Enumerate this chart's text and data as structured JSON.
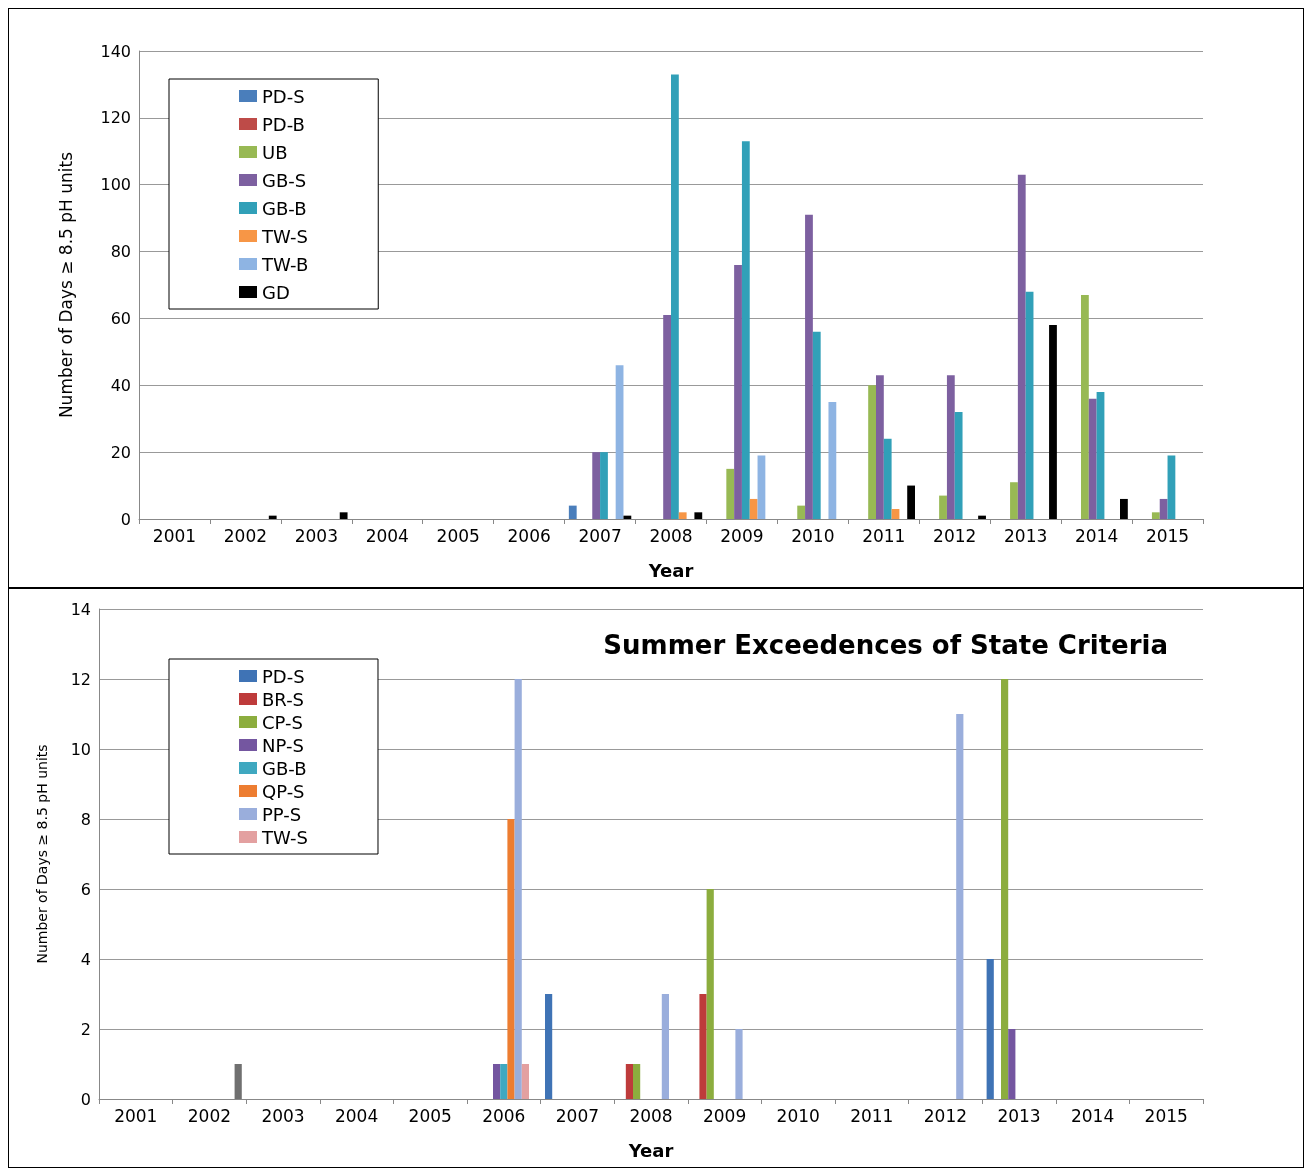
{
  "chart_data": [
    {
      "type": "bar",
      "xlabel": "Year",
      "ylabel": "Number of Days ≥ 8.5 pH units",
      "categories": [
        "2001",
        "2002",
        "2003",
        "2004",
        "2005",
        "2006",
        "2007",
        "2008",
        "2009",
        "2010",
        "2011",
        "2012",
        "2013",
        "2014",
        "2015"
      ],
      "ylim": [
        0,
        140
      ],
      "yticks": [
        0,
        20,
        40,
        60,
        80,
        100,
        120,
        140
      ],
      "grid": "y",
      "legend": "top left",
      "series": [
        {
          "name": "PD-S",
          "color": "#4a7ebb",
          "values": [
            0,
            0,
            0,
            0,
            0,
            0,
            4,
            0,
            0,
            0,
            0,
            0,
            0,
            0,
            0
          ]
        },
        {
          "name": "PD-B",
          "color": "#be4b48",
          "values": [
            0,
            0,
            0,
            0,
            0,
            0,
            0,
            0,
            0,
            0,
            0,
            0,
            0,
            0,
            0
          ]
        },
        {
          "name": "UB",
          "color": "#98b954",
          "values": [
            0,
            0,
            0,
            0,
            0,
            0,
            0,
            0,
            15,
            4,
            40,
            7,
            11,
            67,
            2
          ]
        },
        {
          "name": "GB-S",
          "color": "#7d60a0",
          "values": [
            0,
            0,
            0,
            0,
            0,
            0,
            20,
            61,
            76,
            91,
            43,
            43,
            103,
            36,
            6
          ]
        },
        {
          "name": "GB-B",
          "color": "#31a0b8",
          "values": [
            0,
            0,
            0,
            0,
            0,
            0,
            20,
            133,
            113,
            56,
            24,
            32,
            68,
            38,
            19
          ]
        },
        {
          "name": "TW-S",
          "color": "#f79646",
          "values": [
            0,
            0,
            0,
            0,
            0,
            0,
            0,
            2,
            6,
            0,
            3,
            0,
            0,
            0,
            0
          ]
        },
        {
          "name": "TW-B",
          "color": "#8eb4e3",
          "values": [
            0,
            0,
            0,
            0,
            0,
            0,
            46,
            0,
            19,
            35,
            0,
            0,
            0,
            0,
            0
          ]
        },
        {
          "name": "GD",
          "color": "#000000",
          "values": [
            0,
            1,
            2,
            0,
            0,
            0,
            1,
            2,
            0,
            0,
            10,
            1,
            58,
            6,
            0
          ]
        }
      ]
    },
    {
      "type": "bar",
      "title": "Summer Exceedences of State Criteria",
      "xlabel": "Year",
      "ylabel": "Number of Days ≥ 8.5 pH units",
      "categories": [
        "2001",
        "2002",
        "2003",
        "2004",
        "2005",
        "2006",
        "2007",
        "2008",
        "2009",
        "2010",
        "2011",
        "2012",
        "2013",
        "2014",
        "2015"
      ],
      "ylim": [
        0,
        14
      ],
      "yticks": [
        0,
        2,
        4,
        6,
        8,
        10,
        12,
        14
      ],
      "grid": "y",
      "legend": "top left",
      "series": [
        {
          "name": "PD-S",
          "color": "#3f73b5",
          "values": [
            0,
            0,
            0,
            0,
            0,
            0,
            3,
            0,
            0,
            0,
            0,
            0,
            4,
            0,
            0
          ]
        },
        {
          "name": "BR-S",
          "color": "#be3b3b",
          "values": [
            0,
            0,
            0,
            0,
            0,
            0,
            0,
            1,
            3,
            0,
            0,
            0,
            0,
            0,
            0
          ]
        },
        {
          "name": "CP-S",
          "color": "#8cad3e",
          "values": [
            0,
            0,
            0,
            0,
            0,
            0,
            0,
            1,
            6,
            0,
            0,
            0,
            12,
            0,
            0
          ]
        },
        {
          "name": "NP-S",
          "color": "#7456a0",
          "values": [
            0,
            0,
            0,
            0,
            0,
            1,
            0,
            0,
            0,
            0,
            0,
            0,
            2,
            0,
            0
          ]
        },
        {
          "name": "GB-B",
          "color": "#3fa8c0",
          "values": [
            0,
            0,
            0,
            0,
            0,
            1,
            0,
            0,
            0,
            0,
            0,
            0,
            0,
            0,
            0
          ]
        },
        {
          "name": "QP-S",
          "color": "#ed7d31",
          "values": [
            0,
            0,
            0,
            0,
            0,
            8,
            0,
            0,
            0,
            0,
            0,
            0,
            0,
            0,
            0
          ]
        },
        {
          "name": "PP-S",
          "color": "#9aaedc",
          "values": [
            0,
            0,
            0,
            0,
            0,
            12,
            0,
            3,
            2,
            0,
            0,
            11,
            0,
            0,
            0
          ]
        },
        {
          "name": "TW-S",
          "color": "#e3a0a0",
          "values": [
            0,
            0,
            0,
            0,
            0,
            1,
            0,
            0,
            0,
            0,
            0,
            0,
            0,
            0,
            0
          ]
        },
        {
          "color": "#707070",
          "values": [
            0,
            1,
            0,
            0,
            0,
            0,
            0,
            0,
            0,
            0,
            0,
            0,
            0,
            0,
            0
          ]
        }
      ]
    }
  ]
}
